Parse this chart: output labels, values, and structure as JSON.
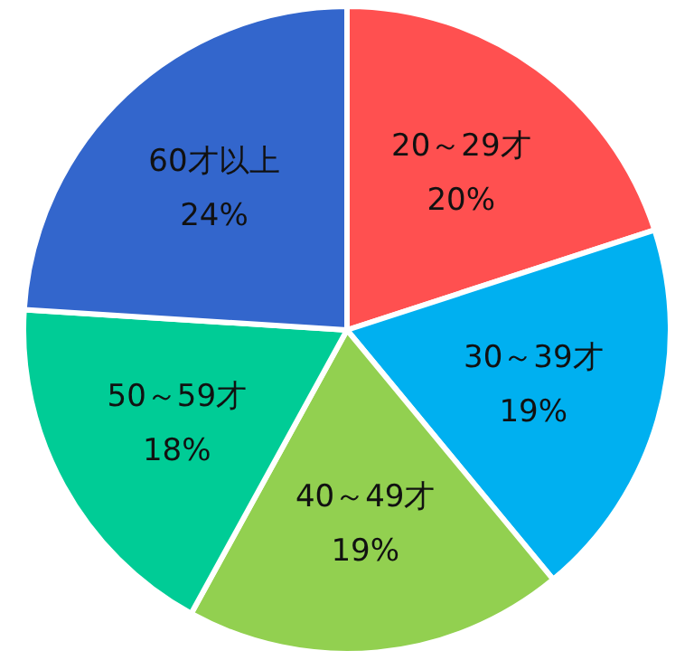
{
  "chart_data": {
    "type": "pie",
    "categories": [
      "20～29才",
      "30～39才",
      "40～49才",
      "50～59才",
      "60才以上"
    ],
    "values": [
      20,
      19,
      19,
      18,
      24
    ],
    "value_labels": [
      "20%",
      "19%",
      "19%",
      "18%",
      "24%"
    ],
    "colors": [
      "#ff5050",
      "#00b0f0",
      "#92d050",
      "#00cc96",
      "#3366cc"
    ],
    "legend": false
  }
}
